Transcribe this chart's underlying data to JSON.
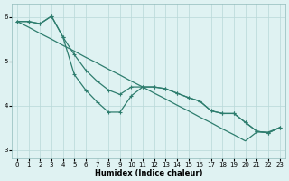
{
  "xlabel": "Humidex (Indice chaleur)",
  "x_all": [
    0,
    1,
    2,
    3,
    4,
    5,
    6,
    7,
    8,
    9,
    10,
    11,
    12,
    13,
    14,
    15,
    16,
    17,
    18,
    19,
    20,
    21,
    22,
    23
  ],
  "straight_line": [
    5.9,
    5.77,
    5.63,
    5.5,
    5.36,
    5.23,
    5.09,
    4.96,
    4.82,
    4.69,
    4.55,
    4.42,
    4.28,
    4.15,
    4.01,
    3.88,
    3.74,
    3.61,
    3.47,
    3.34,
    3.2,
    3.4,
    3.4,
    3.5
  ],
  "upper_curve_x": [
    0,
    1,
    2,
    3,
    4,
    5,
    6,
    7,
    8,
    9,
    10,
    11,
    12,
    13,
    14,
    15,
    16,
    17,
    18,
    19,
    20,
    21,
    22,
    23
  ],
  "upper_curve_y": [
    5.9,
    5.9,
    5.85,
    6.02,
    5.55,
    5.15,
    4.8,
    4.55,
    4.35,
    4.25,
    4.42,
    4.42,
    4.42,
    4.38,
    4.28,
    4.18,
    4.1,
    3.88,
    3.82,
    3.82,
    3.62,
    3.42,
    3.38,
    3.5
  ],
  "lower_curve_x": [
    0,
    1,
    2,
    3,
    4,
    5,
    6,
    7,
    8,
    9,
    10,
    11,
    12,
    13,
    14,
    15,
    16,
    17,
    18,
    19,
    20,
    21,
    22,
    23
  ],
  "lower_curve_y": [
    5.9,
    5.9,
    5.85,
    6.02,
    5.55,
    4.7,
    4.35,
    4.08,
    3.85,
    3.85,
    4.22,
    4.42,
    4.42,
    4.38,
    4.28,
    4.18,
    4.1,
    3.88,
    3.82,
    3.82,
    3.62,
    3.42,
    3.38,
    3.5
  ],
  "color": "#2e7d6e",
  "bg_color": "#dff2f2",
  "grid_color": "#b8d8d8",
  "ylim": [
    2.8,
    6.3
  ],
  "xlim": [
    -0.5,
    23.5
  ],
  "yticks": [
    3,
    4,
    5,
    6
  ],
  "xticks": [
    0,
    1,
    2,
    3,
    4,
    5,
    6,
    7,
    8,
    9,
    10,
    11,
    12,
    13,
    14,
    15,
    16,
    17,
    18,
    19,
    20,
    21,
    22,
    23
  ]
}
